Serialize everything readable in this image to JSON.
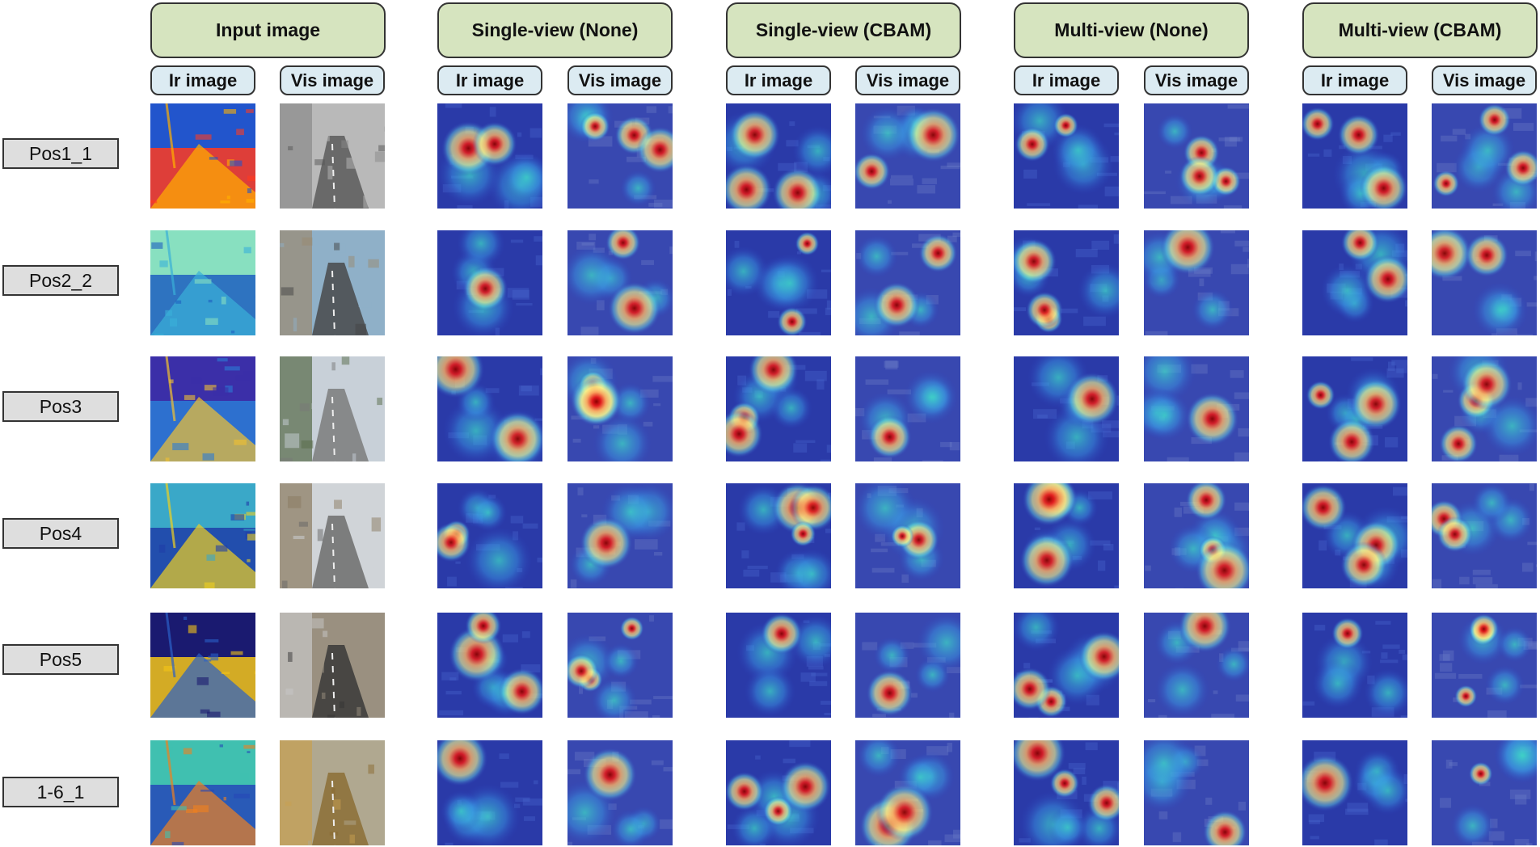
{
  "groups": [
    {
      "title": "Input image",
      "ir": "Ir image",
      "vis": "Vis image"
    },
    {
      "title": "Single-view (None)",
      "ir": "Ir image",
      "vis": "Vis image"
    },
    {
      "title": "Single-view (CBAM)",
      "ir": "Ir image",
      "vis": "Vis image"
    },
    {
      "title": "Multi-view (None)",
      "ir": "Ir image",
      "vis": "Vis image"
    },
    {
      "title": "Multi-view (CBAM)",
      "ir": "Ir image",
      "vis": "Vis image"
    }
  ],
  "rows": [
    "Pos1_1",
    "Pos2_2",
    "Pos3",
    "Pos4",
    "Pos5",
    "1-6_1"
  ],
  "colors": {
    "group_header_fill": "#d6e4bf",
    "sub_header_fill": "#dcebf2",
    "row_label_fill": "#dedede",
    "heatmap_base": "#1a2a8c",
    "heatmap_hot": "#d7191c",
    "heatmap_warm": "#fdae61",
    "heatmap_cool": "#abd9e9"
  }
}
